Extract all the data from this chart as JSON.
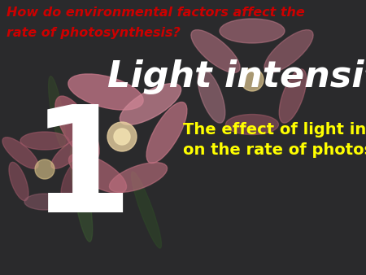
{
  "bg_color": "#2a2b2e",
  "question_text_line1": "How do environmental factors affect the",
  "question_text_line2": "rate of photosynthesis?",
  "question_color": "#cc0000",
  "question_fontsize": 11.5,
  "number_text": "1",
  "number_color": "#ffffff",
  "number_fontsize": 130,
  "title_text": "Light intensity",
  "title_color": "#ffffff",
  "title_fontsize": 32,
  "subtitle_line1": "The effect of light intensity",
  "subtitle_line2": "on the rate of photosynthesis.",
  "subtitle_color": "#ffff00",
  "subtitle_fontsize": 14,
  "fig_width": 4.5,
  "fig_height": 3.38,
  "dpi": 100
}
